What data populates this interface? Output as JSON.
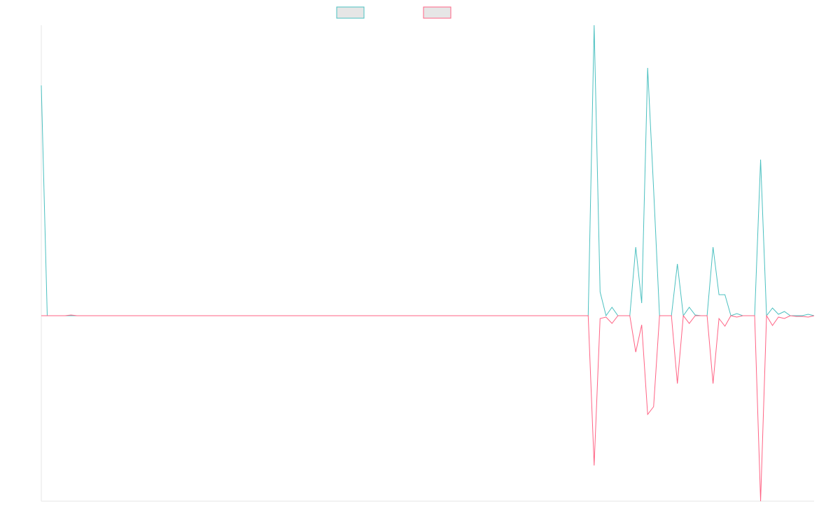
{
  "chart_data": {
    "type": "line",
    "ylim": [
      -265,
      415
    ],
    "legend": "top",
    "series": [
      {
        "color": "#4bc0c0",
        "values": [
          329,
          0,
          0,
          0,
          0,
          0,
          0,
          0,
          0,
          0,
          0,
          0,
          0,
          0,
          0,
          0,
          0,
          0,
          0,
          0,
          0,
          0,
          0,
          0,
          0,
          0,
          0,
          0,
          0,
          0,
          0,
          0,
          0,
          0,
          0,
          0,
          0,
          0,
          0,
          0,
          0,
          0,
          0,
          0,
          0,
          0,
          0,
          0,
          0,
          0,
          0,
          0,
          0,
          0,
          0,
          0,
          0,
          0,
          0,
          0,
          0,
          0,
          0,
          0,
          0,
          0,
          0,
          0,
          0,
          0,
          0,
          0,
          0,
          0,
          0,
          0,
          0,
          0,
          0,
          0,
          0,
          0,
          0,
          0,
          0,
          0,
          0,
          0,
          0,
          0,
          0,
          0,
          0,
          415,
          34,
          0,
          12,
          0,
          0,
          0,
          98,
          18,
          354,
          181,
          0,
          0,
          0,
          74,
          0,
          12,
          1,
          0,
          0,
          98,
          30,
          30,
          0,
          3,
          0,
          0,
          0,
          223,
          0,
          11,
          2,
          6,
          0,
          0,
          0,
          2,
          0
        ]
      },
      {
        "color": "#ff6384",
        "values": [
          0,
          0,
          0,
          0,
          0,
          1,
          0,
          0,
          0,
          0,
          0,
          0,
          0,
          0,
          0,
          0,
          0,
          0,
          0,
          0,
          0,
          0,
          0,
          0,
          0,
          0,
          0,
          0,
          0,
          0,
          0,
          0,
          0,
          0,
          0,
          0,
          0,
          0,
          0,
          0,
          0,
          0,
          0,
          0,
          0,
          0,
          0,
          0,
          0,
          0,
          0,
          0,
          0,
          0,
          0,
          0,
          0,
          0,
          0,
          0,
          0,
          0,
          0,
          0,
          0,
          0,
          0,
          0,
          0,
          0,
          0,
          0,
          0,
          0,
          0,
          0,
          0,
          0,
          0,
          0,
          0,
          0,
          0,
          0,
          0,
          0,
          0,
          0,
          0,
          0,
          0,
          0,
          0,
          -214,
          -4,
          -2,
          -11,
          0,
          0,
          0,
          -52,
          -13,
          -141,
          -130,
          0,
          0,
          0,
          -97,
          0,
          -11,
          0,
          0,
          0,
          -97,
          -4,
          -15,
          0,
          -2,
          0,
          0,
          0,
          -265,
          0,
          -14,
          -2,
          -4,
          0,
          -1,
          -1,
          -2,
          0
        ]
      }
    ]
  }
}
